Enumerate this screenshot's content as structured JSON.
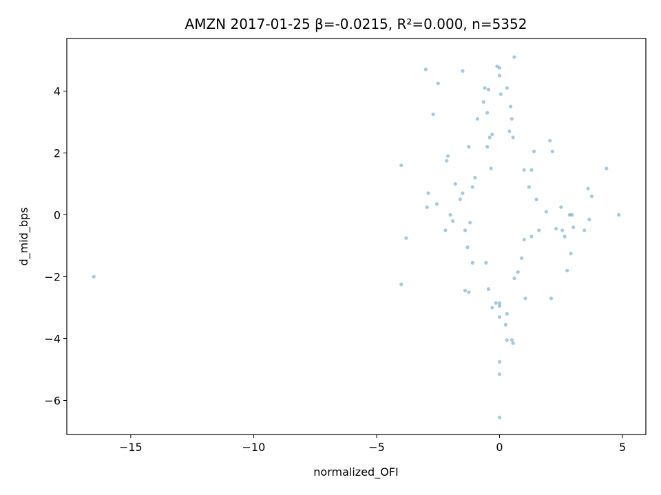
{
  "chart_data": {
    "type": "scatter",
    "title": "AMZN 2017-01-25  β=-0.0215, R²=0.000, n=5352",
    "xlabel": "normalized_OFI",
    "ylabel": "d_mid_bps",
    "xlim": [
      -17.6,
      5.95
    ],
    "ylim": [
      -7.1,
      5.7
    ],
    "xticks": [
      -15,
      -10,
      -5,
      0,
      5
    ],
    "yticks": [
      -6,
      -4,
      -2,
      0,
      2,
      4
    ],
    "xtick_labels": [
      "−15",
      "−10",
      "−5",
      "0",
      "5"
    ],
    "ytick_labels": [
      "−6",
      "−4",
      "−2",
      "0",
      "2",
      "4"
    ],
    "grid": false,
    "point_color": "#1f77b4",
    "point_opacity": 0.4,
    "points": [
      [
        -16.5,
        -2.0
      ],
      [
        -4.0,
        1.6
      ],
      [
        -3.8,
        -0.75
      ],
      [
        -4.0,
        -2.25
      ],
      [
        -3.0,
        4.7
      ],
      [
        -2.5,
        4.25
      ],
      [
        -2.7,
        3.25
      ],
      [
        -2.95,
        0.25
      ],
      [
        -2.9,
        0.7
      ],
      [
        -2.55,
        0.35
      ],
      [
        -1.5,
        4.65
      ],
      [
        -2.1,
        1.9
      ],
      [
        -2.15,
        1.75
      ],
      [
        -1.8,
        1.0
      ],
      [
        -1.6,
        0.5
      ],
      [
        -2.0,
        0.0
      ],
      [
        -1.9,
        -0.2
      ],
      [
        -2.2,
        -0.5
      ],
      [
        -1.4,
        -0.5
      ],
      [
        -1.25,
        2.2
      ],
      [
        -1.5,
        0.7
      ],
      [
        -1.1,
        0.9
      ],
      [
        -1.0,
        1.2
      ],
      [
        -1.2,
        -0.25
      ],
      [
        -1.3,
        -1.05
      ],
      [
        -1.1,
        -1.55
      ],
      [
        -1.4,
        -2.45
      ],
      [
        -1.25,
        -2.5
      ],
      [
        -0.9,
        3.1
      ],
      [
        -0.6,
        4.1
      ],
      [
        -0.45,
        4.05
      ],
      [
        -0.65,
        3.65
      ],
      [
        -0.5,
        3.3
      ],
      [
        -0.4,
        2.5
      ],
      [
        -0.3,
        2.6
      ],
      [
        -0.5,
        2.2
      ],
      [
        -0.35,
        1.5
      ],
      [
        -0.3,
        -3.0
      ],
      [
        -0.15,
        -2.85
      ],
      [
        -0.45,
        -2.4
      ],
      [
        -0.55,
        -1.55
      ],
      [
        -0.1,
        4.8
      ],
      [
        0.0,
        4.75
      ],
      [
        0.0,
        4.5
      ],
      [
        0.05,
        3.9
      ],
      [
        0.0,
        -4.75
      ],
      [
        0.0,
        -5.15
      ],
      [
        0.0,
        -6.55
      ],
      [
        0.0,
        -2.95
      ],
      [
        0.0,
        -2.85
      ],
      [
        0.0,
        -3.3
      ],
      [
        0.6,
        5.1
      ],
      [
        0.3,
        4.1
      ],
      [
        0.45,
        3.5
      ],
      [
        0.5,
        3.1
      ],
      [
        0.4,
        2.7
      ],
      [
        0.55,
        2.5
      ],
      [
        0.3,
        -3.2
      ],
      [
        0.25,
        -3.55
      ],
      [
        0.3,
        -4.05
      ],
      [
        0.5,
        -4.05
      ],
      [
        0.55,
        -4.15
      ],
      [
        0.6,
        -2.05
      ],
      [
        0.75,
        -1.85
      ],
      [
        1.05,
        -2.7
      ],
      [
        0.9,
        -1.4
      ],
      [
        1.0,
        1.45
      ],
      [
        1.3,
        1.45
      ],
      [
        1.4,
        2.05
      ],
      [
        1.2,
        0.9
      ],
      [
        1.5,
        0.5
      ],
      [
        1.9,
        0.1
      ],
      [
        1.6,
        -0.5
      ],
      [
        1.3,
        -0.7
      ],
      [
        1.0,
        -0.8
      ],
      [
        2.05,
        2.4
      ],
      [
        2.15,
        2.05
      ],
      [
        2.1,
        -2.7
      ],
      [
        2.3,
        -0.45
      ],
      [
        2.5,
        0.25
      ],
      [
        2.55,
        -0.5
      ],
      [
        2.65,
        -0.7
      ],
      [
        2.9,
        -1.25
      ],
      [
        2.75,
        -1.8
      ],
      [
        3.0,
        -0.4
      ],
      [
        2.85,
        0.0
      ],
      [
        2.95,
        0.0
      ],
      [
        3.6,
        0.85
      ],
      [
        3.75,
        0.6
      ],
      [
        3.65,
        -0.15
      ],
      [
        3.45,
        -0.5
      ],
      [
        4.35,
        1.5
      ],
      [
        4.85,
        0.0
      ]
    ]
  }
}
